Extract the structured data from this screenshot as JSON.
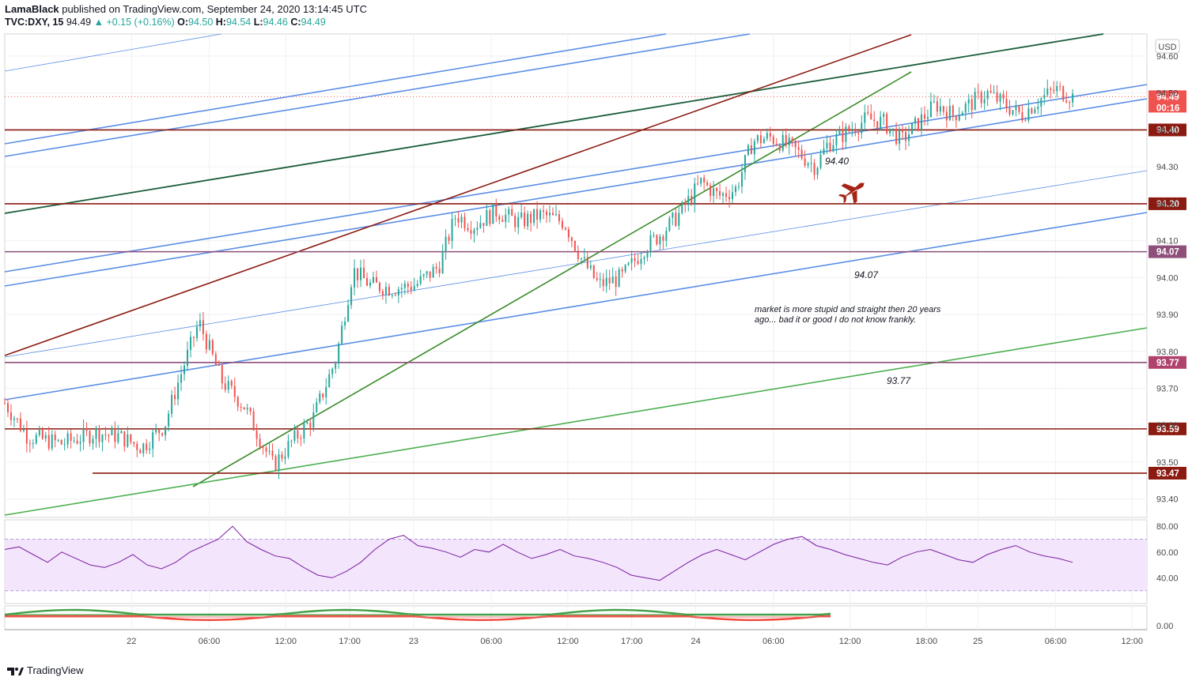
{
  "header": {
    "author": "LamaBlack",
    "published": "published on TradingView.com, September 24, 2020 13:14:45 UTC",
    "symbol": "TVC:DXY, 15",
    "last": "94.49",
    "change": "+0.15 (+0.16%)",
    "o_label": "O:",
    "o": "94.50",
    "h_label": "H:",
    "h": "94.54",
    "l_label": "L:",
    "l": "94.46",
    "c_label": "C:",
    "c": "94.49"
  },
  "currency": "USD",
  "countdown": "00:16",
  "footer": {
    "brand": "TradingView"
  },
  "colors": {
    "up": "#26a69a",
    "down": "#ef5350",
    "level": "#8b1a10",
    "trend": "#2e7d32",
    "channel": "#5b8ee6",
    "rsi": "#7b1fa2"
  },
  "chart_data": [
    {
      "type": "candlestick",
      "symbol": "TVC:DXY",
      "interval": "15",
      "ylim": [
        93.35,
        94.66
      ],
      "y_ticks": [
        "94.60",
        "94.50",
        "94.40",
        "94.30",
        "94.20",
        "94.10",
        "94.00",
        "93.90",
        "93.80",
        "93.70",
        "93.60",
        "93.50",
        "93.40"
      ],
      "x_ticks": [
        {
          "label": "22",
          "t": 0.111
        },
        {
          "label": "06:00",
          "t": 0.179
        },
        {
          "label": "12:00",
          "t": 0.246
        },
        {
          "label": "17:00",
          "t": 0.302
        },
        {
          "label": "23",
          "t": 0.358
        },
        {
          "label": "06:00",
          "t": 0.426
        },
        {
          "label": "12:00",
          "t": 0.493
        },
        {
          "label": "17:00",
          "t": 0.549
        },
        {
          "label": "24",
          "t": 0.605
        },
        {
          "label": "06:00",
          "t": 0.673
        },
        {
          "label": "12:00",
          "t": 0.74
        },
        {
          "label": "18:00",
          "t": 0.807
        },
        {
          "label": "25",
          "t": 0.852
        },
        {
          "label": "06:00",
          "t": 0.92
        },
        {
          "label": "12:00",
          "t": 0.987
        }
      ],
      "price_path": [
        [
          0.0,
          93.66
        ],
        [
          0.02,
          93.57
        ],
        [
          0.05,
          93.55
        ],
        [
          0.08,
          93.58
        ],
        [
          0.1,
          93.57
        ],
        [
          0.12,
          93.54
        ],
        [
          0.14,
          93.6
        ],
        [
          0.15,
          93.7
        ],
        [
          0.17,
          93.88
        ],
        [
          0.19,
          93.72
        ],
        [
          0.21,
          93.65
        ],
        [
          0.235,
          93.49
        ],
        [
          0.25,
          93.55
        ],
        [
          0.27,
          93.62
        ],
        [
          0.29,
          93.78
        ],
        [
          0.305,
          94.02
        ],
        [
          0.32,
          93.98
        ],
        [
          0.34,
          93.97
        ],
        [
          0.36,
          93.98
        ],
        [
          0.38,
          94.03
        ],
        [
          0.395,
          94.17
        ],
        [
          0.41,
          94.14
        ],
        [
          0.43,
          94.18
        ],
        [
          0.45,
          94.15
        ],
        [
          0.47,
          94.17
        ],
        [
          0.49,
          94.15
        ],
        [
          0.505,
          94.05
        ],
        [
          0.52,
          93.98
        ],
        [
          0.54,
          94.0
        ],
        [
          0.56,
          94.08
        ],
        [
          0.575,
          94.12
        ],
        [
          0.59,
          94.17
        ],
        [
          0.61,
          94.26
        ],
        [
          0.625,
          94.22
        ],
        [
          0.64,
          94.24
        ],
        [
          0.655,
          94.37
        ],
        [
          0.67,
          94.38
        ],
        [
          0.69,
          94.35
        ],
        [
          0.71,
          94.3
        ],
        [
          0.72,
          94.36
        ],
        [
          0.74,
          94.4
        ],
        [
          0.755,
          94.43
        ],
        [
          0.77,
          94.42
        ],
        [
          0.785,
          94.37
        ],
        [
          0.8,
          94.42
        ],
        [
          0.815,
          94.47
        ],
        [
          0.83,
          94.44
        ],
        [
          0.845,
          94.47
        ],
        [
          0.86,
          94.5
        ],
        [
          0.875,
          94.47
        ],
        [
          0.89,
          94.44
        ],
        [
          0.905,
          94.48
        ],
        [
          0.92,
          94.51
        ],
        [
          0.935,
          94.49
        ]
      ],
      "horizontal_levels": [
        {
          "value": 94.4,
          "label": "94.40",
          "color": "#8b1a10"
        },
        {
          "value": 94.2,
          "label": "94.20",
          "color": "#8b1a10"
        },
        {
          "value": 94.07,
          "label": "94.07",
          "color": "#8e4f7a"
        },
        {
          "value": 93.77,
          "label": "93.77",
          "color": "#8e4f7a"
        },
        {
          "value": 93.59,
          "label": "93.59",
          "color": "#8b1a10"
        },
        {
          "value": 93.47,
          "label": "93.47",
          "color": "#8b1a10"
        }
      ],
      "last_price": {
        "value": 94.49,
        "label": "94.49"
      },
      "annotations": [
        {
          "text": "94.40"
        },
        {
          "text": "94.07"
        },
        {
          "text": "93.77"
        },
        {
          "text": "market is more stupid and straight then  20 years"
        },
        {
          "text": "ago... bad it or good I do not know frankly."
        }
      ]
    },
    {
      "type": "line",
      "name": "RSI",
      "ylim": [
        20,
        85
      ],
      "y_ticks": [
        "80.00",
        "60.00",
        "40.00"
      ],
      "band": [
        30,
        70
      ],
      "values": [
        62,
        64,
        58,
        52,
        60,
        55,
        50,
        48,
        52,
        58,
        50,
        47,
        52,
        60,
        65,
        70,
        80,
        68,
        62,
        57,
        55,
        48,
        42,
        40,
        45,
        52,
        62,
        70,
        73,
        65,
        63,
        60,
        56,
        62,
        60,
        66,
        60,
        55,
        58,
        62,
        57,
        55,
        52,
        48,
        42,
        40,
        38,
        45,
        52,
        58,
        62,
        58,
        54,
        60,
        66,
        70,
        72,
        65,
        62,
        58,
        55,
        52,
        50,
        56,
        60,
        62,
        58,
        54,
        52,
        58,
        62,
        65,
        60,
        57,
        55,
        52
      ]
    },
    {
      "type": "line",
      "name": "oscillator",
      "ylim": [
        -10,
        30
      ],
      "y_ticks": [
        "0.00"
      ]
    }
  ]
}
